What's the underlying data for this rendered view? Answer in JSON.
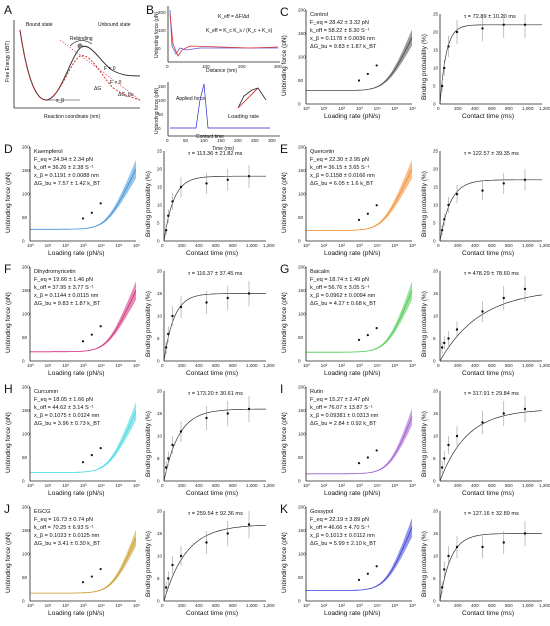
{
  "colors": {
    "control": "#4a4a4a",
    "kaempferol": "#3a8fd8",
    "quercetin": "#f08a2a",
    "dihydromyricetin": "#d0287a",
    "baicalin": "#46c84a",
    "curcumin": "#3ad6e0",
    "rutin": "#9a58d0",
    "egcg": "#c8961e",
    "gossypol": "#3a40d8"
  },
  "panel_a": {
    "letter": "A",
    "ylabel": "Free Energy (kBT)",
    "xlabel": "Reaction coordinate (nm)",
    "bound_state": "Bound state",
    "unbound_state": "Unbound state",
    "rebinding": "Rebinding",
    "k_off": "k_off",
    "f0": "F = 0",
    "fnot0": "F ≠ 0",
    "xb": "x_β",
    "dG": "ΔG",
    "dGbu": "ΔG_bu"
  },
  "panel_b": {
    "letter": "B",
    "ylabel_top": "Unbinding force (pN)",
    "xlabel_top": "Distance (nm)",
    "eq1": "K_eff = ΔF/Δd",
    "eq2": "K_eff = K_c K_s / (K_c + K_s)",
    "ylabel_bottom": "Unbinding force (pN)",
    "xlabel_bottom": "Time (ms)",
    "applied_force": "Applied force",
    "contact_time": "Contact time",
    "loading_rate": "Loading rate",
    "top_xticks": [
      "0",
      "100",
      "200",
      "300"
    ],
    "top_yticks": [
      "0",
      "100",
      "200"
    ],
    "bottom_xticks": [
      "0",
      "50",
      "100",
      "150",
      "200",
      "250",
      "300"
    ],
    "bottom_yticks": [
      "0",
      "50",
      "100",
      "150"
    ]
  },
  "axis_labels": {
    "force_y": "Unbinding force (pN)",
    "force_x": "Loading rate (pN/s)",
    "bind_y": "Binding probability (%)",
    "bind_x": "Contact time (ms)"
  },
  "force_xticks": [
    "10⁰",
    "10¹",
    "10²",
    "10³",
    "10⁴",
    "10⁵",
    "10⁶"
  ],
  "force_yticks": [
    "0",
    "50",
    "100",
    "150",
    "200"
  ],
  "bind_xticks": [
    "0",
    "200",
    "400",
    "600",
    "800",
    "1,000",
    "1,200"
  ],
  "bind_yticks_25": [
    "0",
    "5",
    "10",
    "15",
    "20",
    "25"
  ],
  "bind_yticks_20": [
    "0",
    "5",
    "10",
    "15",
    "20"
  ],
  "panels": [
    {
      "letter": "C",
      "name": "Control",
      "feq": "F_eq = 28.42 ± 3.32 pN",
      "koff": "k_off = 58.22 ± 8.30 S⁻¹",
      "xb": "x_β = 0.1178 ± 0.0036 nm",
      "dg": "ΔG_bu = 9.83 ± 1.87 k_BT",
      "tau": "τ = 72.89 ± 10.20 ms",
      "color": "#4a4a4a"
    },
    {
      "letter": "D",
      "name": "Kaempferol",
      "feq": "F_eq = 24.94 ± 2.34 pN",
      "koff": "k_off = 36.26 ± 2.38 S⁻¹",
      "xb": "x_β = 0.1191 ± 0.0088 nm",
      "dg": "ΔG_bu = 7.57 ± 1.42 k_BT",
      "tau": "τ = 113.36 ± 21.82 ms",
      "color": "#3a8fd8"
    },
    {
      "letter": "E",
      "name": "Quercetin",
      "feq": "F_eq = 22.30 ± 2.95 pN",
      "koff": "k_off = 36.15 ± 3.65 S⁻¹",
      "xb": "x_β = 0.1158 ± 0.0166 nm",
      "dg": "ΔG_bu = 6.05 ± 1.6 k_BT",
      "tau": "τ = 122.57 ± 39.35 ms",
      "color": "#f08a2a"
    },
    {
      "letter": "F",
      "name": "Dihydromyricetin",
      "feq": "F_eq = 19.66 ± 1.46 pN",
      "koff": "k_off = 37.95 ± 3.77 S⁻¹",
      "xb": "x_β = 0.1144 ± 0.0115 nm",
      "dg": "ΔG_bu = 9.83 ± 1.87 k_BT",
      "tau": "τ = 116.37 ± 37.45 ms",
      "color": "#d0287a"
    },
    {
      "letter": "G",
      "name": "Baicalin",
      "feq": "F_eq = 18.74 ± 1.49 pN",
      "koff": "k_off = 56.76 ± 3.05 S⁻¹",
      "xb": "x_β = 0.0962 ± 0.0094 nm",
      "dg": "ΔG_bu = 4.27 ± 0.68 k_BT",
      "tau": "τ = 478.29 ± 78.60 ms",
      "color": "#46c84a"
    },
    {
      "letter": "H",
      "name": "Curcumin",
      "feq": "F_eq = 18.05 ± 1.66 pN",
      "koff": "k_off = 44.62 ± 3.14 S⁻¹",
      "xb": "x_β = 0.1075 ± 0.0124 nm",
      "dg": "ΔG_bu = 3.96 ± 0.73 k_BT",
      "tau": "τ = 173.20 ± 30.61 ms",
      "color": "#3ad6e0"
    },
    {
      "letter": "I",
      "name": "Rutin",
      "feq": "F_eq = 15.27 ± 2.47 pN",
      "koff": "k_off = 76.07 ± 13.87 S⁻¹",
      "xb": "x_β = 0.09381 ± 0.0313 nm",
      "dg": "ΔG_bu = 2.84 ± 0.92 k_BT",
      "tau": "τ = 317.91 ± 29.84 ms",
      "color": "#9a58d0"
    },
    {
      "letter": "J",
      "name": "EGCG",
      "feq": "F_eq = 16.73 ± 0.74 pN",
      "koff": "k_off = 70.25 ± 6.93 S⁻¹",
      "xb": "x_β = 0.1023 ± 0.0125 nm",
      "dg": "ΔG_bu = 3.41 ± 0.30 k_BT",
      "tau": "τ = 259.54 ± 92.36 ms",
      "color": "#c8961e"
    },
    {
      "letter": "K",
      "name": "Gossypol",
      "feq": "F_eq = 22.19 ± 3.89 pN",
      "koff": "k_off = 46.66 ± 4.70 S⁻¹",
      "xb": "x_β = 0.1013 ± 0.0112 nm",
      "dg": "ΔG_bu = 5.99 ± 2.10 k_BT",
      "tau": "τ = 127.16 ± 32.89 ms",
      "color": "#3a40d8"
    }
  ],
  "chart_data": [
    {
      "panel": "C",
      "type": "line",
      "series": "force fit",
      "feq": 28.42,
      "koff": 58.22,
      "xb": 0.1178,
      "x_loading_rate": [
        1,
        10,
        100,
        1000,
        10000,
        100000,
        1000000
      ],
      "ylim": [
        0,
        200
      ],
      "points_log10x": [
        3.0,
        3.5,
        4.0
      ],
      "points_y": [
        50,
        64,
        82
      ]
    },
    {
      "panel": "C",
      "type": "scatter",
      "series": "binding",
      "tau": 72.89,
      "ylim": [
        0,
        25
      ],
      "x": [
        25,
        50,
        100,
        200,
        500,
        750,
        1000
      ],
      "y": [
        5,
        10,
        16,
        20,
        21,
        22,
        22
      ]
    },
    {
      "panel": "D",
      "type": "line",
      "series": "force fit",
      "feq": 24.94,
      "koff": 36.26,
      "xb": 0.1191,
      "ylim": [
        0,
        200
      ],
      "points_log10x": [
        3.0,
        3.5,
        4.0
      ],
      "points_y": [
        48,
        60,
        80
      ]
    },
    {
      "panel": "D",
      "type": "scatter",
      "series": "binding",
      "tau": 113.36,
      "ylim": [
        0,
        25
      ],
      "x": [
        25,
        50,
        100,
        200,
        500,
        750,
        1000
      ],
      "y": [
        3,
        7,
        11,
        15,
        16,
        17,
        18
      ]
    },
    {
      "panel": "E",
      "type": "line",
      "series": "force fit",
      "feq": 22.3,
      "koff": 36.15,
      "xb": 0.1158,
      "ylim": [
        0,
        200
      ],
      "points_log10x": [
        3.0,
        3.5,
        4.0
      ],
      "points_y": [
        45,
        58,
        76
      ]
    },
    {
      "panel": "E",
      "type": "scatter",
      "series": "binding",
      "tau": 122.57,
      "ylim": [
        0,
        25
      ],
      "x": [
        25,
        50,
        100,
        200,
        500,
        750,
        1000
      ],
      "y": [
        3,
        6,
        10,
        13,
        14,
        16,
        17
      ]
    },
    {
      "panel": "F",
      "type": "line",
      "series": "force fit",
      "feq": 19.66,
      "koff": 37.95,
      "xb": 0.1144,
      "ylim": [
        0,
        200
      ],
      "points_log10x": [
        3.0,
        3.5,
        4.0
      ],
      "points_y": [
        42,
        56,
        74
      ]
    },
    {
      "panel": "F",
      "type": "scatter",
      "series": "binding",
      "tau": 116.37,
      "ylim": [
        0,
        20
      ],
      "x": [
        25,
        50,
        100,
        200,
        500,
        750,
        1000
      ],
      "y": [
        3,
        6,
        10,
        12,
        13,
        14,
        15
      ]
    },
    {
      "panel": "G",
      "type": "line",
      "series": "force fit",
      "feq": 18.74,
      "koff": 56.76,
      "xb": 0.0962,
      "ylim": [
        0,
        200
      ],
      "points_log10x": [
        3.0,
        3.5,
        4.0
      ],
      "points_y": [
        45,
        55,
        70
      ]
    },
    {
      "panel": "G",
      "type": "scatter",
      "series": "binding",
      "tau": 478.29,
      "ylim": [
        0,
        20
      ],
      "x": [
        25,
        50,
        100,
        200,
        500,
        750,
        1000
      ],
      "y": [
        3,
        4,
        5,
        7,
        11,
        14,
        16
      ]
    },
    {
      "panel": "H",
      "type": "line",
      "series": "force fit",
      "feq": 18.05,
      "koff": 44.62,
      "xb": 0.1075,
      "ylim": [
        0,
        200
      ],
      "points_log10x": [
        3.0,
        3.5,
        4.0
      ],
      "points_y": [
        40,
        55,
        70
      ]
    },
    {
      "panel": "H",
      "type": "scatter",
      "series": "binding",
      "tau": 173.2,
      "ylim": [
        0,
        20
      ],
      "x": [
        25,
        50,
        100,
        200,
        500,
        750,
        1000
      ],
      "y": [
        3,
        5,
        8,
        11,
        14,
        15,
        16
      ]
    },
    {
      "panel": "I",
      "type": "line",
      "series": "force fit",
      "feq": 15.27,
      "koff": 76.07,
      "xb": 0.09381,
      "ylim": [
        0,
        200
      ],
      "points_log10x": [
        3.0,
        3.5,
        4.0
      ],
      "points_y": [
        38,
        50,
        65
      ]
    },
    {
      "panel": "I",
      "type": "scatter",
      "series": "binding",
      "tau": 317.91,
      "ylim": [
        0,
        20
      ],
      "x": [
        25,
        50,
        100,
        200,
        500,
        750,
        1000
      ],
      "y": [
        3,
        5,
        8,
        10,
        13,
        15,
        16
      ]
    },
    {
      "panel": "J",
      "type": "line",
      "series": "force fit",
      "feq": 16.73,
      "koff": 70.25,
      "xb": 0.1023,
      "ylim": [
        0,
        200
      ],
      "points_log10x": [
        3.0,
        3.5,
        4.0
      ],
      "points_y": [
        40,
        52,
        68
      ]
    },
    {
      "panel": "J",
      "type": "scatter",
      "series": "binding",
      "tau": 259.54,
      "ylim": [
        0,
        20
      ],
      "x": [
        25,
        50,
        100,
        200,
        500,
        750,
        1000
      ],
      "y": [
        3,
        5,
        8,
        10,
        13,
        15,
        17
      ]
    },
    {
      "panel": "K",
      "type": "line",
      "series": "force fit",
      "feq": 22.19,
      "koff": 46.66,
      "xb": 0.1013,
      "ylim": [
        0,
        200
      ],
      "points_log10x": [
        3.0,
        3.5,
        4.0
      ],
      "points_y": [
        45,
        58,
        74
      ]
    },
    {
      "panel": "K",
      "type": "scatter",
      "series": "binding",
      "tau": 127.16,
      "ylim": [
        0,
        20
      ],
      "x": [
        25,
        50,
        100,
        200,
        500,
        750,
        1000
      ],
      "y": [
        3,
        7,
        10,
        12,
        12,
        13,
        15
      ]
    }
  ]
}
